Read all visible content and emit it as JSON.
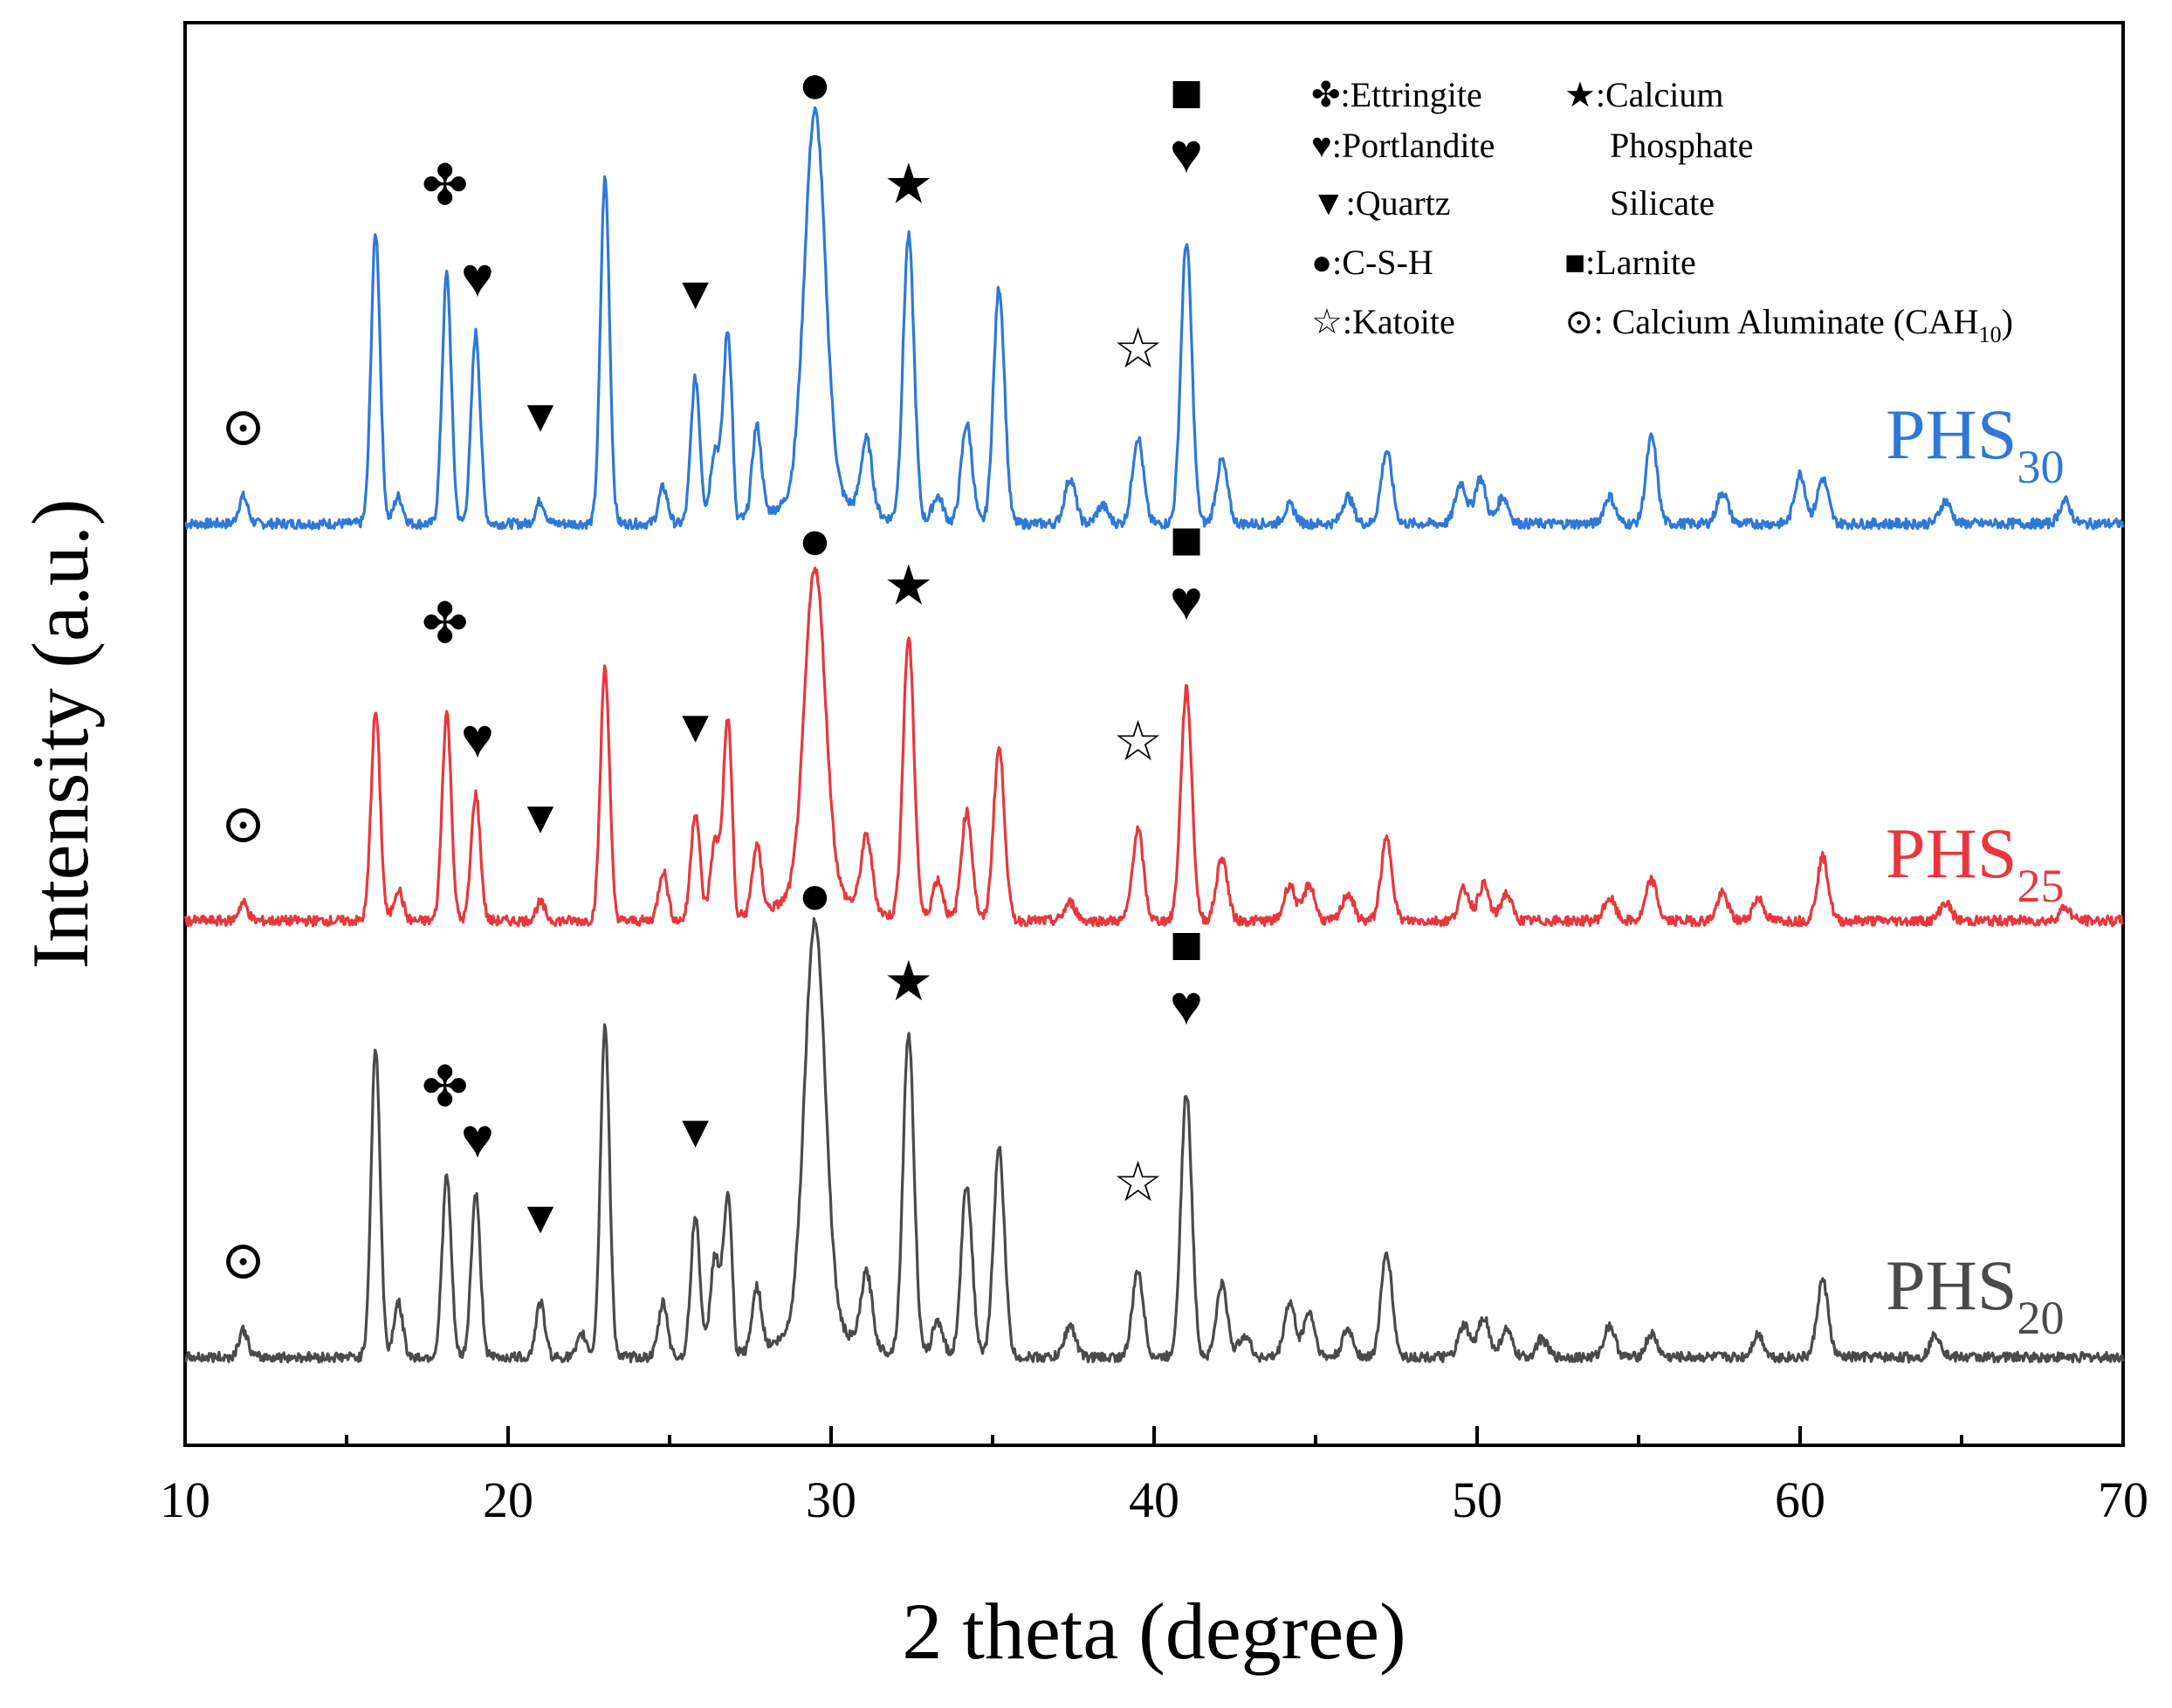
{
  "chart_data": {
    "type": "line",
    "title": "",
    "xlabel": "2 theta (degree)",
    "ylabel": "Intensity (a.u.)",
    "xlim": [
      10,
      70
    ],
    "xticks": [
      10,
      20,
      30,
      40,
      50,
      60,
      70
    ],
    "yticks_shown": false,
    "legend": {
      "placement": "top-right",
      "entries": [
        {
          "symbol": "✤",
          "name": "Ettringite",
          "text": "✤:Ettringite"
        },
        {
          "symbol": "♥",
          "name": "Portlandite",
          "text": "♥:Portlandite"
        },
        {
          "symbol": "▼",
          "name": "Quartz",
          "text": "▼:Quartz"
        },
        {
          "symbol": "●",
          "name": "C-S-H",
          "text": "●:C-S-H"
        },
        {
          "symbol": "☆",
          "name": "Katoite",
          "text": "☆:Katoite"
        },
        {
          "symbol": "★",
          "name": "Calcium Phosphate Silicate",
          "text_lines": [
            "★:Calcium",
            "Phosphate",
            "Silicate"
          ]
        },
        {
          "symbol": "■",
          "name": "Larnite",
          "text": "■:Larnite"
        },
        {
          "symbol": "⊙",
          "name": "Calcium Aluminate (CAH10)",
          "text_main": "⊙: Calcium Aluminate (CAH",
          "text_sub": "10",
          "text_end": ")"
        }
      ]
    },
    "series": [
      {
        "name": "PHS30",
        "label_main": "PHS",
        "label_sub": "30",
        "color": "#2e78d8",
        "baseline": 0.0,
        "peaks": [
          {
            "x": 11.8,
            "h": 0.06
          },
          {
            "x": 15.9,
            "h": 0.64
          },
          {
            "x": 16.6,
            "h": 0.06
          },
          {
            "x": 18.1,
            "h": 0.55
          },
          {
            "x": 19.0,
            "h": 0.42
          },
          {
            "x": 21.0,
            "h": 0.05
          },
          {
            "x": 23.0,
            "h": 0.76
          },
          {
            "x": 24.8,
            "h": 0.08
          },
          {
            "x": 25.8,
            "h": 0.32
          },
          {
            "x": 26.4,
            "h": 0.16
          },
          {
            "x": 26.8,
            "h": 0.42
          },
          {
            "x": 27.7,
            "h": 0.2
          },
          {
            "x": 29.5,
            "h": 0.85
          },
          {
            "x": 31.1,
            "h": 0.16
          },
          {
            "x": 32.4,
            "h": 0.63
          },
          {
            "x": 33.3,
            "h": 0.06
          },
          {
            "x": 34.2,
            "h": 0.22
          },
          {
            "x": 35.2,
            "h": 0.52
          },
          {
            "x": 37.4,
            "h": 0.1
          },
          {
            "x": 38.4,
            "h": 0.04
          },
          {
            "x": 39.5,
            "h": 0.19
          },
          {
            "x": 41.0,
            "h": 0.62
          },
          {
            "x": 42.1,
            "h": 0.14
          },
          {
            "x": 44.2,
            "h": 0.04
          },
          {
            "x": 46.0,
            "h": 0.06
          },
          {
            "x": 47.2,
            "h": 0.16
          },
          {
            "x": 49.5,
            "h": 0.09
          },
          {
            "x": 50.1,
            "h": 0.1
          },
          {
            "x": 50.8,
            "h": 0.06
          },
          {
            "x": 54.1,
            "h": 0.06
          },
          {
            "x": 55.4,
            "h": 0.19
          },
          {
            "x": 57.6,
            "h": 0.07
          },
          {
            "x": 60.0,
            "h": 0.11
          },
          {
            "x": 60.7,
            "h": 0.1
          },
          {
            "x": 64.5,
            "h": 0.05
          },
          {
            "x": 68.2,
            "h": 0.05
          }
        ]
      },
      {
        "name": "PHS25",
        "label_main": "PHS",
        "label_sub": "25",
        "color": "#e8373c",
        "baseline": 0.0,
        "peaks": [
          {
            "x": 11.8,
            "h": 0.04
          },
          {
            "x": 15.9,
            "h": 0.46
          },
          {
            "x": 16.6,
            "h": 0.07
          },
          {
            "x": 18.1,
            "h": 0.46
          },
          {
            "x": 19.0,
            "h": 0.28
          },
          {
            "x": 21.0,
            "h": 0.04
          },
          {
            "x": 23.0,
            "h": 0.56
          },
          {
            "x": 24.8,
            "h": 0.11
          },
          {
            "x": 25.8,
            "h": 0.24
          },
          {
            "x": 26.4,
            "h": 0.17
          },
          {
            "x": 26.8,
            "h": 0.44
          },
          {
            "x": 27.7,
            "h": 0.15
          },
          {
            "x": 29.5,
            "h": 0.72
          },
          {
            "x": 31.1,
            "h": 0.16
          },
          {
            "x": 32.4,
            "h": 0.62
          },
          {
            "x": 33.3,
            "h": 0.09
          },
          {
            "x": 34.2,
            "h": 0.24
          },
          {
            "x": 35.2,
            "h": 0.38
          },
          {
            "x": 37.4,
            "h": 0.04
          },
          {
            "x": 39.5,
            "h": 0.2
          },
          {
            "x": 41.0,
            "h": 0.51
          },
          {
            "x": 42.1,
            "h": 0.14
          },
          {
            "x": 44.2,
            "h": 0.08
          },
          {
            "x": 44.8,
            "h": 0.08
          },
          {
            "x": 46.0,
            "h": 0.06
          },
          {
            "x": 47.2,
            "h": 0.18
          },
          {
            "x": 49.6,
            "h": 0.07
          },
          {
            "x": 50.2,
            "h": 0.08
          },
          {
            "x": 50.9,
            "h": 0.06
          },
          {
            "x": 54.1,
            "h": 0.05
          },
          {
            "x": 55.4,
            "h": 0.09
          },
          {
            "x": 57.6,
            "h": 0.06
          },
          {
            "x": 58.7,
            "h": 0.05
          },
          {
            "x": 60.7,
            "h": 0.14
          },
          {
            "x": 64.5,
            "h": 0.04
          },
          {
            "x": 68.2,
            "h": 0.03
          }
        ]
      },
      {
        "name": "PHS20",
        "label_main": "PHS",
        "label_sub": "20",
        "color": "#4a4a4a",
        "baseline": 0.0,
        "peaks": [
          {
            "x": 11.8,
            "h": 0.06
          },
          {
            "x": 15.9,
            "h": 0.68
          },
          {
            "x": 16.6,
            "h": 0.12
          },
          {
            "x": 18.1,
            "h": 0.4
          },
          {
            "x": 19.0,
            "h": 0.36
          },
          {
            "x": 21.0,
            "h": 0.12
          },
          {
            "x": 22.3,
            "h": 0.05
          },
          {
            "x": 23.0,
            "h": 0.73
          },
          {
            "x": 24.8,
            "h": 0.12
          },
          {
            "x": 25.8,
            "h": 0.31
          },
          {
            "x": 26.4,
            "h": 0.22
          },
          {
            "x": 26.8,
            "h": 0.35
          },
          {
            "x": 27.7,
            "h": 0.14
          },
          {
            "x": 29.5,
            "h": 0.9
          },
          {
            "x": 31.1,
            "h": 0.16
          },
          {
            "x": 32.4,
            "h": 0.71
          },
          {
            "x": 33.3,
            "h": 0.08
          },
          {
            "x": 34.2,
            "h": 0.38
          },
          {
            "x": 35.2,
            "h": 0.46
          },
          {
            "x": 37.4,
            "h": 0.07
          },
          {
            "x": 39.5,
            "h": 0.19
          },
          {
            "x": 41.0,
            "h": 0.58
          },
          {
            "x": 42.1,
            "h": 0.16
          },
          {
            "x": 42.8,
            "h": 0.05
          },
          {
            "x": 44.2,
            "h": 0.12
          },
          {
            "x": 44.8,
            "h": 0.1
          },
          {
            "x": 46.0,
            "h": 0.06
          },
          {
            "x": 47.2,
            "h": 0.23
          },
          {
            "x": 49.6,
            "h": 0.07
          },
          {
            "x": 50.2,
            "h": 0.09
          },
          {
            "x": 50.9,
            "h": 0.06
          },
          {
            "x": 52.0,
            "h": 0.04
          },
          {
            "x": 54.1,
            "h": 0.07
          },
          {
            "x": 55.4,
            "h": 0.05
          },
          {
            "x": 58.7,
            "h": 0.05
          },
          {
            "x": 60.7,
            "h": 0.17
          },
          {
            "x": 64.2,
            "h": 0.05
          }
        ]
      }
    ],
    "annotations": [
      {
        "series": "PHS30",
        "label": "⊙",
        "x": 11.8
      },
      {
        "series": "PHS30",
        "label": "✤",
        "x": 18.1
      },
      {
        "series": "PHS30",
        "label": "♥",
        "x": 19.0
      },
      {
        "series": "PHS30",
        "label": "▼",
        "x": 21.0
      },
      {
        "series": "PHS30",
        "label": "▼",
        "x": 25.8
      },
      {
        "series": "PHS30",
        "label": "●",
        "x": 29.5
      },
      {
        "series": "PHS30",
        "label": "★",
        "x": 32.4
      },
      {
        "series": "PHS30",
        "label": "☆",
        "x": 39.5
      },
      {
        "series": "PHS30",
        "label": "■",
        "x": 41.0
      },
      {
        "series": "PHS30",
        "label": "♥",
        "x": 41.0
      },
      {
        "series": "PHS25",
        "label": "⊙",
        "x": 11.8
      },
      {
        "series": "PHS25",
        "label": "✤",
        "x": 18.1
      },
      {
        "series": "PHS25",
        "label": "♥",
        "x": 19.0
      },
      {
        "series": "PHS25",
        "label": "▼",
        "x": 21.0
      },
      {
        "series": "PHS25",
        "label": "▼",
        "x": 25.8
      },
      {
        "series": "PHS25",
        "label": "●",
        "x": 29.5
      },
      {
        "series": "PHS25",
        "label": "★",
        "x": 32.4
      },
      {
        "series": "PHS25",
        "label": "☆",
        "x": 39.5
      },
      {
        "series": "PHS25",
        "label": "■",
        "x": 41.0
      },
      {
        "series": "PHS25",
        "label": "♥",
        "x": 41.0
      },
      {
        "series": "PHS20",
        "label": "⊙",
        "x": 11.8
      },
      {
        "series": "PHS20",
        "label": "✤",
        "x": 18.1
      },
      {
        "series": "PHS20",
        "label": "♥",
        "x": 19.0
      },
      {
        "series": "PHS20",
        "label": "▼",
        "x": 21.0
      },
      {
        "series": "PHS20",
        "label": "▼",
        "x": 25.8
      },
      {
        "series": "PHS20",
        "label": "●",
        "x": 29.5
      },
      {
        "series": "PHS20",
        "label": "★",
        "x": 32.4
      },
      {
        "series": "PHS20",
        "label": "☆",
        "x": 39.5
      },
      {
        "series": "PHS20",
        "label": "■",
        "x": 41.0
      },
      {
        "series": "PHS20",
        "label": "♥",
        "x": 41.0
      }
    ]
  }
}
